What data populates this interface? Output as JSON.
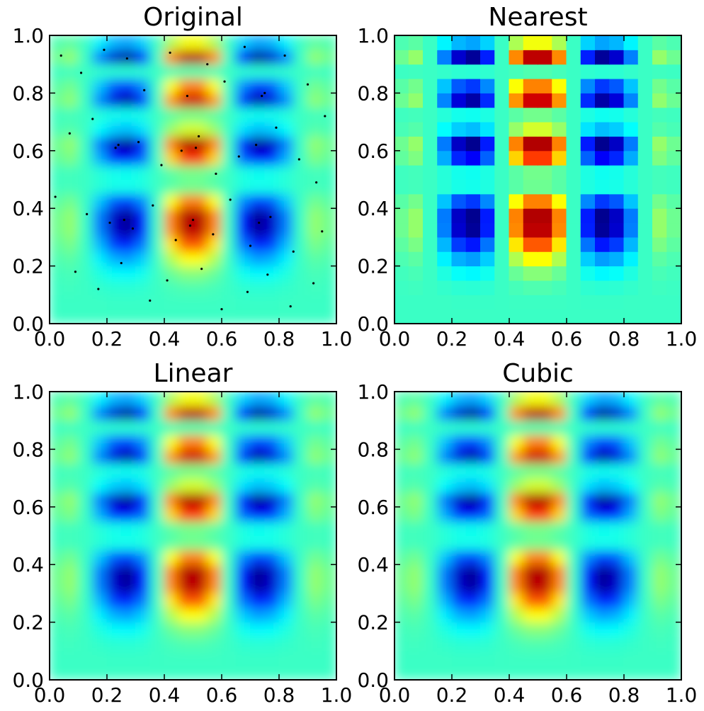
{
  "chart_data": {
    "type": "heatmap",
    "colormap": "jet",
    "clim": [
      -0.19,
      0.25
    ],
    "panels": [
      {
        "title": "Original",
        "smooth": true,
        "points": true
      },
      {
        "title": "Nearest",
        "smooth": false,
        "points": false
      },
      {
        "title": "Linear",
        "smooth": true,
        "points": false
      },
      {
        "title": "Cubic",
        "smooth": true,
        "points": false
      }
    ],
    "xlim": [
      0,
      1
    ],
    "ylim": [
      0,
      1
    ],
    "xticks": [
      {
        "value": 0,
        "label": "0.0"
      },
      {
        "value": 0.2,
        "label": "0.2"
      },
      {
        "value": 0.4,
        "label": "0.4"
      },
      {
        "value": 0.6,
        "label": "0.6"
      },
      {
        "value": 0.8,
        "label": "0.8"
      },
      {
        "value": 1,
        "label": "1.0"
      }
    ],
    "yticks": [
      {
        "value": 0,
        "label": "0.0"
      },
      {
        "value": 0.2,
        "label": "0.2"
      },
      {
        "value": 0.4,
        "label": "0.4"
      },
      {
        "value": 0.6,
        "label": "0.6"
      },
      {
        "value": 0.8,
        "label": "0.8"
      },
      {
        "value": 1,
        "label": "1.0"
      }
    ],
    "x": [
      0.025,
      0.075,
      0.125,
      0.175,
      0.225,
      0.275,
      0.325,
      0.375,
      0.425,
      0.475,
      0.525,
      0.575,
      0.625,
      0.675,
      0.725,
      0.775,
      0.825,
      0.875,
      0.925,
      0.975
    ],
    "y": [
      0.025,
      0.075,
      0.125,
      0.175,
      0.225,
      0.275,
      0.325,
      0.375,
      0.425,
      0.475,
      0.525,
      0.575,
      0.625,
      0.675,
      0.725,
      0.775,
      0.825,
      0.875,
      0.925,
      0.975
    ],
    "z": [
      [
        0,
        0,
        0,
        0,
        0,
        0,
        0,
        0,
        0,
        0,
        0,
        0,
        0,
        0,
        0,
        0,
        0,
        0,
        0,
        0
      ],
      [
        0,
        0,
        0,
        0,
        -0.001,
        -0.001,
        -0.001,
        0,
        0.001,
        0.001,
        0.001,
        0.001,
        0,
        -0.001,
        -0.001,
        -0.001,
        0,
        0,
        0,
        0
      ],
      [
        0.001,
        0.002,
        0,
        -0.003,
        -0.006,
        -0.007,
        -0.005,
        0,
        0.005,
        0.009,
        0.009,
        0.005,
        0,
        -0.005,
        -0.007,
        -0.006,
        -0.003,
        0,
        0.002,
        0.001
      ],
      [
        0.003,
        0.006,
        0,
        -0.012,
        -0.023,
        -0.027,
        -0.018,
        0,
        0.02,
        0.033,
        0.033,
        0.02,
        0,
        -0.018,
        -0.027,
        -0.023,
        -0.012,
        0,
        0.006,
        0.003
      ],
      [
        0.008,
        0.014,
        0,
        -0.03,
        -0.059,
        -0.067,
        -0.046,
        0,
        0.051,
        0.084,
        0.084,
        0.051,
        0,
        -0.046,
        -0.067,
        -0.059,
        -0.03,
        0,
        0.014,
        0.008
      ],
      [
        0.015,
        0.027,
        0,
        -0.056,
        -0.11,
        -0.126,
        -0.085,
        0,
        0.095,
        0.157,
        0.157,
        0.095,
        0,
        -0.085,
        -0.126,
        -0.11,
        -0.056,
        0,
        0.027,
        0.015
      ],
      [
        0.022,
        0.039,
        0,
        -0.08,
        -0.156,
        -0.179,
        -0.122,
        0,
        0.136,
        0.223,
        0.223,
        0.136,
        0,
        -0.122,
        -0.179,
        -0.156,
        -0.08,
        0,
        0.039,
        0.022
      ],
      [
        0.022,
        0.039,
        0,
        -0.082,
        -0.16,
        -0.183,
        -0.124,
        0,
        0.139,
        0.228,
        0.228,
        0.139,
        0,
        -0.124,
        -0.183,
        -0.16,
        -0.082,
        0,
        0.039,
        0.022
      ],
      [
        0.013,
        0.024,
        0,
        -0.05,
        -0.097,
        -0.111,
        -0.076,
        0,
        0.084,
        0.139,
        0.139,
        0.084,
        0,
        -0.076,
        -0.111,
        -0.097,
        -0.05,
        0,
        0.024,
        0.013
      ],
      [
        0.002,
        0.004,
        0,
        -0.008,
        -0.015,
        -0.017,
        -0.012,
        0,
        0.013,
        0.022,
        0.022,
        0.013,
        0,
        -0.012,
        -0.017,
        -0.015,
        -0.008,
        0,
        0.004,
        0.002
      ],
      [
        0.002,
        0.004,
        0,
        -0.009,
        -0.017,
        -0.019,
        -0.013,
        0,
        0.014,
        0.024,
        0.024,
        0.014,
        0,
        -0.013,
        -0.019,
        -0.017,
        -0.009,
        0,
        0.004,
        0.002
      ],
      [
        0.017,
        0.029,
        0,
        -0.061,
        -0.119,
        -0.137,
        -0.093,
        0,
        0.104,
        0.17,
        0.17,
        0.104,
        0,
        -0.093,
        -0.137,
        -0.119,
        -0.061,
        0,
        0.029,
        0.017
      ],
      [
        0.022,
        0.039,
        0,
        -0.082,
        -0.16,
        -0.183,
        -0.124,
        0,
        0.139,
        0.228,
        0.228,
        0.139,
        0,
        -0.124,
        -0.183,
        -0.16,
        -0.082,
        0,
        0.039,
        0.022
      ],
      [
        0.006,
        0.011,
        0,
        -0.024,
        -0.046,
        -0.053,
        -0.036,
        0,
        0.04,
        0.066,
        0.066,
        0.04,
        0,
        -0.036,
        -0.053,
        -0.046,
        -0.024,
        0,
        0.011,
        0.006
      ],
      [
        0.002,
        0.004,
        0,
        -0.009,
        -0.017,
        -0.019,
        -0.013,
        0,
        0.014,
        0.024,
        0.024,
        0.014,
        0,
        -0.013,
        -0.019,
        -0.017,
        -0.009,
        0,
        0.004,
        0.002
      ],
      [
        0.021,
        0.037,
        0,
        -0.077,
        -0.151,
        -0.173,
        -0.117,
        0,
        0.131,
        0.215,
        0.215,
        0.131,
        0,
        -0.117,
        -0.173,
        -0.151,
        -0.077,
        0,
        0.037,
        0.021
      ],
      [
        0.013,
        0.024,
        0,
        -0.05,
        -0.097,
        -0.111,
        -0.076,
        0,
        0.084,
        0.139,
        0.139,
        0.084,
        0,
        -0.076,
        -0.111,
        -0.097,
        -0.05,
        0,
        0.024,
        0.013
      ],
      [
        0.001,
        0.002,
        0,
        -0.003,
        -0.006,
        -0.007,
        -0.005,
        0,
        0.005,
        0.009,
        0.009,
        0.005,
        0,
        -0.005,
        -0.007,
        -0.006,
        -0.003,
        0,
        0.002,
        0.001
      ],
      [
        0.022,
        0.039,
        0,
        -0.08,
        -0.156,
        -0.179,
        -0.122,
        0,
        0.136,
        0.223,
        0.223,
        0.136,
        0,
        -0.122,
        -0.179,
        -0.156,
        -0.08,
        0,
        0.039,
        0.022
      ],
      [
        0.008,
        0.014,
        0,
        -0.029,
        -0.056,
        -0.064,
        -0.044,
        0,
        0.049,
        0.08,
        0.08,
        0.049,
        0,
        -0.044,
        -0.064,
        -0.056,
        -0.029,
        0,
        0.014,
        0.008
      ]
    ],
    "points": {
      "x": [
        0.04,
        0.11,
        0.19,
        0.27,
        0.33,
        0.42,
        0.48,
        0.55,
        0.61,
        0.68,
        0.74,
        0.82,
        0.9,
        0.96,
        0.07,
        0.15,
        0.23,
        0.31,
        0.39,
        0.46,
        0.52,
        0.58,
        0.66,
        0.72,
        0.79,
        0.87,
        0.93,
        0.02,
        0.13,
        0.21,
        0.29,
        0.36,
        0.44,
        0.5,
        0.57,
        0.63,
        0.7,
        0.77,
        0.85,
        0.95,
        0.09,
        0.17,
        0.25,
        0.35,
        0.41,
        0.53,
        0.6,
        0.69,
        0.76,
        0.84,
        0.92,
        0.26,
        0.49,
        0.73,
        0.24,
        0.51,
        0.75
      ],
      "y": [
        0.93,
        0.87,
        0.95,
        0.92,
        0.81,
        0.94,
        0.79,
        0.9,
        0.84,
        0.96,
        0.79,
        0.93,
        0.83,
        0.72,
        0.66,
        0.71,
        0.61,
        0.63,
        0.55,
        0.6,
        0.65,
        0.52,
        0.58,
        0.62,
        0.68,
        0.57,
        0.49,
        0.44,
        0.38,
        0.35,
        0.33,
        0.41,
        0.29,
        0.36,
        0.31,
        0.43,
        0.27,
        0.37,
        0.25,
        0.32,
        0.18,
        0.12,
        0.21,
        0.08,
        0.15,
        0.19,
        0.05,
        0.11,
        0.17,
        0.06,
        0.14,
        0.36,
        0.34,
        0.35,
        0.62,
        0.61,
        0.8
      ]
    }
  }
}
